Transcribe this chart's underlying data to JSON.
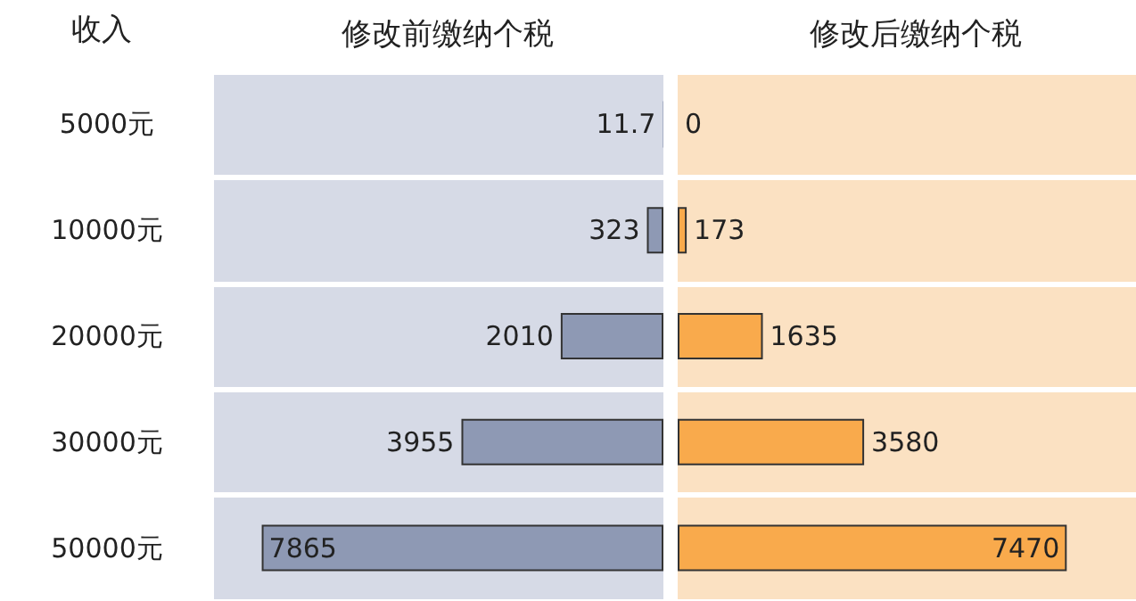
{
  "chart_data": [
    {
      "type": "bar",
      "orientation": "horizontal",
      "title": "修改前缴纳个税",
      "ylabel": "收入",
      "categories": [
        "5000元",
        "10000元",
        "20000元",
        "30000元",
        "50000元"
      ],
      "values": [
        11.7,
        323,
        2010,
        3955,
        7865
      ],
      "color": "#8e99b4",
      "xlim": [
        8800,
        0
      ],
      "data_labels": true,
      "tick_labels": "y"
    },
    {
      "type": "bar",
      "orientation": "horizontal",
      "title": "修改后缴纳个税",
      "categories": [
        null,
        null,
        null,
        null,
        null
      ],
      "values": [
        0,
        173,
        1635,
        3580,
        7470
      ],
      "color": "#f9aa4c",
      "xlim": [
        0,
        8800
      ],
      "data_labels": true,
      "tick_labels": false
    }
  ]
}
